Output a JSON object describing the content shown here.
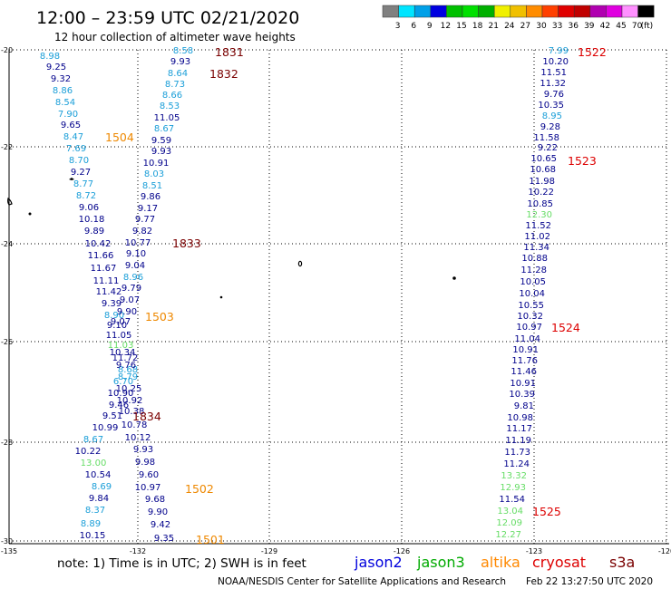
{
  "header": {
    "title": "12:00 – 23:59 UTC 02/21/2020",
    "subtitle": "12 hour collection of altimeter wave heights"
  },
  "colorbar": {
    "unit": "(ft)",
    "items": [
      {
        "label": "3",
        "color": "#808080"
      },
      {
        "label": "6",
        "color": "#00e5ff"
      },
      {
        "label": "9",
        "color": "#00a0e8"
      },
      {
        "label": "12",
        "color": "#0000e0"
      },
      {
        "label": "15",
        "color": "#00c000"
      },
      {
        "label": "18",
        "color": "#00e000"
      },
      {
        "label": "21",
        "color": "#00b000"
      },
      {
        "label": "24",
        "color": "#f0f000"
      },
      {
        "label": "27",
        "color": "#f0c000"
      },
      {
        "label": "30",
        "color": "#ff8c00"
      },
      {
        "label": "33",
        "color": "#ff4000"
      },
      {
        "label": "36",
        "color": "#e00000"
      },
      {
        "label": "39",
        "color": "#c00000"
      },
      {
        "label": "42",
        "color": "#b000b0"
      },
      {
        "label": "45",
        "color": "#e000e0"
      },
      {
        "label": "70",
        "color": "#ff90ff"
      },
      {
        "label": "",
        "color": "#000000"
      }
    ]
  },
  "axes": {
    "lat_labels": [
      "-20",
      "-22",
      "-24",
      "-26",
      "-28",
      "-30"
    ],
    "lon_labels": [
      "-135",
      "-132",
      "-129",
      "-126",
      "-123",
      "-120"
    ]
  },
  "colors": {
    "c_dark": "#00008b",
    "c_cyan": "#1a9ed8",
    "c_light": "#66dd66",
    "orange": "#ee8800",
    "dark_red": "#7a0000",
    "red": "#dd0000"
  },
  "tracks": {
    "a": {
      "values": [
        {
          "v": "8.98",
          "c": "c_cyan"
        },
        {
          "v": "9.25",
          "c": "c_dark"
        },
        {
          "v": "9.32",
          "c": "c_dark"
        },
        {
          "v": "8.86",
          "c": "c_cyan"
        },
        {
          "v": "8.54",
          "c": "c_cyan"
        },
        {
          "v": "7.90",
          "c": "c_cyan"
        },
        {
          "v": "9.65",
          "c": "c_dark"
        },
        {
          "v": "8.47",
          "c": "c_cyan"
        },
        {
          "v": "7.69",
          "c": "c_cyan"
        },
        {
          "v": "8.70",
          "c": "c_cyan"
        },
        {
          "v": "9.27",
          "c": "c_dark"
        },
        {
          "v": "8.77",
          "c": "c_cyan"
        },
        {
          "v": "8.72",
          "c": "c_cyan"
        },
        {
          "v": "9.06",
          "c": "c_dark"
        },
        {
          "v": "10.18",
          "c": "c_dark"
        },
        {
          "v": "9.89",
          "c": "c_dark"
        },
        {
          "v": "10.42",
          "c": "c_dark"
        },
        {
          "v": "11.66",
          "c": "c_dark"
        },
        {
          "v": "11.67",
          "c": "c_dark"
        },
        {
          "v": "11.11",
          "c": "c_dark"
        },
        {
          "v": "11.42",
          "c": "c_dark"
        },
        {
          "v": "9.39",
          "c": "c_dark"
        },
        {
          "v": "8.90",
          "c": "c_cyan"
        },
        {
          "v": "9.10",
          "c": "c_dark"
        },
        {
          "v": "11.05",
          "c": "c_dark"
        },
        {
          "v": "11.03",
          "c": "c_light"
        },
        {
          "v": "10.34",
          "c": "c_dark"
        },
        {
          "v": "11.72",
          "c": "c_dark"
        },
        {
          "v": "8.68",
          "c": "c_cyan"
        },
        {
          "v": "6.70",
          "c": "c_cyan"
        },
        {
          "v": "10.90",
          "c": "c_dark"
        },
        {
          "v": "9.46",
          "c": "c_dark"
        },
        {
          "v": "9.51",
          "c": "c_dark"
        },
        {
          "v": "10.99",
          "c": "c_dark"
        },
        {
          "v": "8.67",
          "c": "c_cyan"
        },
        {
          "v": "10.22",
          "c": "c_dark"
        },
        {
          "v": "13.00",
          "c": "c_light"
        },
        {
          "v": "10.54",
          "c": "c_dark"
        },
        {
          "v": "8.69",
          "c": "c_cyan"
        },
        {
          "v": "9.84",
          "c": "c_dark"
        },
        {
          "v": "8.37",
          "c": "c_cyan"
        },
        {
          "v": "8.89",
          "c": "c_cyan"
        },
        {
          "v": "10.15",
          "c": "c_dark"
        }
      ]
    },
    "b": {
      "values": [
        {
          "v": "8.58",
          "c": "c_cyan"
        },
        {
          "v": "9.93",
          "c": "c_dark"
        },
        {
          "v": "8.64",
          "c": "c_cyan"
        },
        {
          "v": "8.73",
          "c": "c_cyan"
        },
        {
          "v": "8.66",
          "c": "c_cyan"
        },
        {
          "v": "8.53",
          "c": "c_cyan"
        },
        {
          "v": "11.05",
          "c": "c_dark"
        },
        {
          "v": "8.67",
          "c": "c_cyan"
        },
        {
          "v": "9.59",
          "c": "c_dark"
        },
        {
          "v": "9.93",
          "c": "c_dark"
        },
        {
          "v": "10.91",
          "c": "c_dark"
        },
        {
          "v": "8.03",
          "c": "c_cyan"
        },
        {
          "v": "8.51",
          "c": "c_cyan"
        },
        {
          "v": "9.86",
          "c": "c_dark"
        },
        {
          "v": "9.17",
          "c": "c_dark"
        },
        {
          "v": "9.77",
          "c": "c_dark"
        },
        {
          "v": "9.82",
          "c": "c_dark"
        },
        {
          "v": "10.77",
          "c": "c_dark"
        },
        {
          "v": "9.10",
          "c": "c_dark"
        },
        {
          "v": "9.04",
          "c": "c_dark"
        },
        {
          "v": "8.96",
          "c": "c_cyan"
        },
        {
          "v": "9.79",
          "c": "c_dark"
        },
        {
          "v": "9.07",
          "c": "c_dark"
        },
        {
          "v": "9.90",
          "c": "c_dark"
        },
        {
          "v": "9.07",
          "c": "c_dark"
        },
        {
          "v": "9.76",
          "c": "c_dark"
        },
        {
          "v": "8.79",
          "c": "c_cyan"
        },
        {
          "v": "10.25",
          "c": "c_dark"
        },
        {
          "v": "10.92",
          "c": "c_dark"
        },
        {
          "v": "10.38",
          "c": "c_dark"
        },
        {
          "v": "10.78",
          "c": "c_dark"
        },
        {
          "v": "10.12",
          "c": "c_dark"
        },
        {
          "v": "9.93",
          "c": "c_dark"
        },
        {
          "v": "9.98",
          "c": "c_dark"
        },
        {
          "v": "9.60",
          "c": "c_dark"
        },
        {
          "v": "10.97",
          "c": "c_dark"
        },
        {
          "v": "9.68",
          "c": "c_dark"
        },
        {
          "v": "9.90",
          "c": "c_dark"
        },
        {
          "v": "9.42",
          "c": "c_dark"
        },
        {
          "v": "9.35",
          "c": "c_dark"
        }
      ]
    },
    "c": {
      "values": [
        {
          "v": "7.99",
          "c": "c_cyan"
        },
        {
          "v": "10.20",
          "c": "c_dark"
        },
        {
          "v": "11.51",
          "c": "c_dark"
        },
        {
          "v": "11.32",
          "c": "c_dark"
        },
        {
          "v": "9.76",
          "c": "c_dark"
        },
        {
          "v": "10.35",
          "c": "c_dark"
        },
        {
          "v": "8.95",
          "c": "c_cyan"
        },
        {
          "v": "9.28",
          "c": "c_dark"
        },
        {
          "v": "11.58",
          "c": "c_dark"
        },
        {
          "v": "9.22",
          "c": "c_dark"
        },
        {
          "v": "10.65",
          "c": "c_dark"
        },
        {
          "v": "10.68",
          "c": "c_dark"
        },
        {
          "v": "11.98",
          "c": "c_dark"
        },
        {
          "v": "10.22",
          "c": "c_dark"
        },
        {
          "v": "10.85",
          "c": "c_dark"
        },
        {
          "v": "12.30",
          "c": "c_light"
        },
        {
          "v": "11.52",
          "c": "c_dark"
        },
        {
          "v": "11.02",
          "c": "c_dark"
        },
        {
          "v": "11.34",
          "c": "c_dark"
        },
        {
          "v": "10.88",
          "c": "c_dark"
        },
        {
          "v": "11.28",
          "c": "c_dark"
        },
        {
          "v": "10.05",
          "c": "c_dark"
        },
        {
          "v": "10.04",
          "c": "c_dark"
        },
        {
          "v": "10.55",
          "c": "c_dark"
        },
        {
          "v": "10.32",
          "c": "c_dark"
        },
        {
          "v": "10.97",
          "c": "c_dark"
        },
        {
          "v": "11.04",
          "c": "c_dark"
        },
        {
          "v": "10.91",
          "c": "c_dark"
        },
        {
          "v": "11.76",
          "c": "c_dark"
        },
        {
          "v": "11.46",
          "c": "c_dark"
        },
        {
          "v": "10.91",
          "c": "c_dark"
        },
        {
          "v": "10.39",
          "c": "c_dark"
        },
        {
          "v": "9.81",
          "c": "c_dark"
        },
        {
          "v": "10.98",
          "c": "c_dark"
        },
        {
          "v": "11.17",
          "c": "c_dark"
        },
        {
          "v": "11.19",
          "c": "c_dark"
        },
        {
          "v": "11.73",
          "c": "c_dark"
        },
        {
          "v": "11.24",
          "c": "c_dark"
        },
        {
          "v": "13.32",
          "c": "c_light"
        },
        {
          "v": "12.93",
          "c": "c_light"
        },
        {
          "v": "11.54",
          "c": "c_dark"
        },
        {
          "v": "13.04",
          "c": "c_light"
        },
        {
          "v": "12.09",
          "c": "c_light"
        },
        {
          "v": "12.27",
          "c": "c_light"
        }
      ]
    }
  },
  "time_tags": [
    {
      "label": "1831",
      "c": "dark_red"
    },
    {
      "label": "1832",
      "c": "dark_red"
    },
    {
      "label": "1504",
      "c": "orange"
    },
    {
      "label": "1833",
      "c": "dark_red"
    },
    {
      "label": "1503",
      "c": "orange"
    },
    {
      "label": "1834",
      "c": "dark_red"
    },
    {
      "label": "1502",
      "c": "orange"
    },
    {
      "label": "1501",
      "c": "orange"
    },
    {
      "label": "1522",
      "c": "red"
    },
    {
      "label": "1523",
      "c": "red"
    },
    {
      "label": "1524",
      "c": "red"
    },
    {
      "label": "1525",
      "c": "red"
    }
  ],
  "footer": {
    "note": "note: 1) Time is in UTC; 2) SWH is in feet",
    "satellites": [
      {
        "name": "jason2",
        "color": "#0000dd"
      },
      {
        "name": "jason3",
        "color": "#00aa00"
      },
      {
        "name": "altika",
        "color": "#ff8800"
      },
      {
        "name": "cryosat",
        "color": "#dd0000"
      },
      {
        "name": "s3a",
        "color": "#7a0000"
      }
    ],
    "credit": "NOAA/NESDIS Center for Satellite Applications and Research",
    "timestamp": "Feb 22 13:27:50 UTC 2020"
  }
}
